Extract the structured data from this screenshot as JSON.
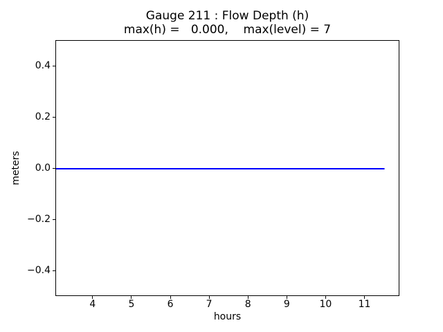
{
  "chart_data": {
    "type": "line",
    "title": "Gauge 211 : Flow Depth (h)",
    "subtitle": "max(h) =   0.000,    max(level) = 7",
    "xlabel": "hours",
    "ylabel": "meters",
    "xlim": [
      3.04,
      11.9
    ],
    "ylim": [
      -0.5,
      0.5
    ],
    "xticks": [
      4,
      5,
      6,
      7,
      8,
      9,
      10,
      11
    ],
    "xtick_labels": [
      "4",
      "5",
      "6",
      "7",
      "8",
      "9",
      "10",
      "11"
    ],
    "yticks": [
      -0.4,
      -0.2,
      0.0,
      0.2,
      0.4
    ],
    "ytick_labels": [
      "−0.4",
      "−0.2",
      "0.0",
      "0.2",
      "0.4"
    ],
    "grid": false,
    "legend": null,
    "series": [
      {
        "name": "flow-depth-h",
        "color": "#0000ff",
        "x": [
          3.0,
          11.5
        ],
        "y": [
          0.0,
          0.0
        ]
      }
    ],
    "max_h": "0.000",
    "max_level": "7"
  },
  "colors": {
    "background": "#ffffff",
    "spine": "#000000",
    "text": "#000000",
    "line": "#0000ff"
  }
}
